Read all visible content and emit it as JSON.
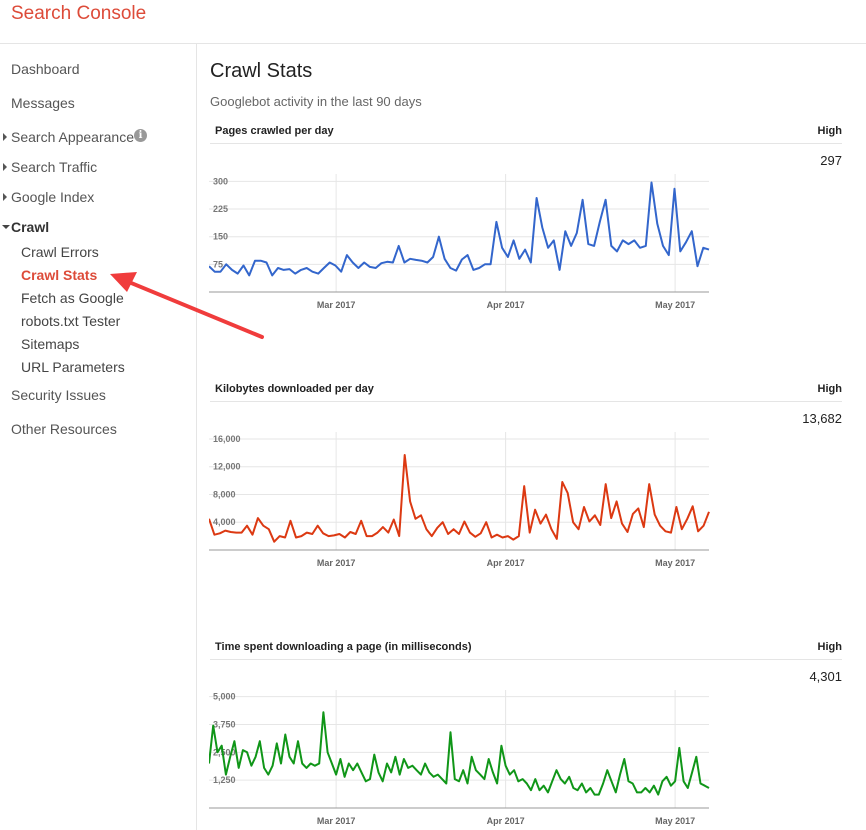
{
  "app": {
    "title": "Search Console"
  },
  "sidebar": {
    "dashboard": "Dashboard",
    "messages": "Messages",
    "search_appearance": "Search Appearance",
    "search_traffic": "Search Traffic",
    "google_index": "Google Index",
    "crawl": "Crawl",
    "crawl_children": [
      "Crawl Errors",
      "Crawl Stats",
      "Fetch as Google",
      "robots.txt Tester",
      "Sitemaps",
      "URL Parameters"
    ],
    "security_issues": "Security Issues",
    "other_resources": "Other Resources",
    "info_glyph": "i"
  },
  "main": {
    "title": "Crawl Stats",
    "subtitle": "Googlebot activity in the last 90 days",
    "high_label": "High"
  },
  "chart_data": [
    {
      "type": "line",
      "title": "Pages crawled per day",
      "high": "297",
      "color": "#3366cc",
      "ylim": [
        0,
        320
      ],
      "yticks": [
        300,
        225,
        150,
        75
      ],
      "ytick_labels": [
        "300",
        "225",
        "150",
        "75"
      ],
      "x_tick_labels": [
        "Mar 2017",
        "Apr 2017",
        "May 2017"
      ],
      "x_tick_positions": [
        30,
        70,
        110
      ],
      "values": [
        70,
        55,
        55,
        75,
        60,
        50,
        72,
        45,
        85,
        85,
        80,
        45,
        65,
        60,
        62,
        50,
        60,
        65,
        55,
        50,
        65,
        80,
        72,
        55,
        100,
        80,
        65,
        80,
        68,
        65,
        78,
        82,
        80,
        125,
        80,
        90,
        87,
        85,
        80,
        95,
        150,
        90,
        65,
        58,
        88,
        100,
        60,
        65,
        75,
        75,
        190,
        120,
        95,
        140,
        90,
        115,
        80,
        255,
        175,
        120,
        140,
        60,
        165,
        125,
        160,
        250,
        130,
        125,
        190,
        250,
        125,
        110,
        140,
        130,
        140,
        120,
        125,
        297,
        185,
        125,
        100,
        280,
        110,
        135,
        165,
        70,
        120,
        115
      ]
    },
    {
      "type": "line",
      "title": "Kilobytes downloaded per day",
      "high": "13,682",
      "color": "#dc3912",
      "ylim": [
        0,
        17000
      ],
      "yticks": [
        16000,
        12000,
        8000,
        4000
      ],
      "ytick_labels": [
        "16,000",
        "12,000",
        "8,000",
        "4,000"
      ],
      "x_tick_labels": [
        "Mar 2017",
        "Apr 2017",
        "May 2017"
      ],
      "x_tick_positions": [
        30,
        70,
        110
      ],
      "values": [
        4500,
        2200,
        2400,
        2800,
        2600,
        2500,
        2500,
        3500,
        2200,
        4600,
        3500,
        3000,
        1200,
        2000,
        1800,
        4200,
        1800,
        2000,
        2500,
        2300,
        3500,
        2400,
        2000,
        2100,
        2300,
        1800,
        2600,
        2300,
        4200,
        2000,
        2000,
        2500,
        3300,
        2500,
        4400,
        2000,
        13682,
        7000,
        4500,
        5000,
        3000,
        2000,
        3200,
        4000,
        2300,
        3000,
        2300,
        4100,
        2500,
        1900,
        2400,
        4000,
        1800,
        2200,
        1800,
        2000,
        1500,
        2000,
        9200,
        2500,
        5800,
        3800,
        5100,
        3000,
        1600,
        9800,
        8200,
        4000,
        3000,
        6200,
        4100,
        5000,
        3600,
        9500,
        4600,
        7000,
        3800,
        2600,
        5200,
        6000,
        3300,
        9500,
        5100,
        3500,
        2700,
        2500,
        6200,
        3000,
        4500,
        6300,
        2700,
        3500,
        5500
      ]
    },
    {
      "type": "line",
      "title": "Time spent downloading a page (in milliseconds)",
      "high": "4,301",
      "color": "#109618",
      "ylim": [
        0,
        5300
      ],
      "yticks": [
        5000,
        3750,
        2500,
        1250
      ],
      "ytick_labels": [
        "5,000",
        "3,750",
        "2,500",
        "1,250"
      ],
      "x_tick_labels": [
        "Mar 2017",
        "Apr 2017",
        "May 2017"
      ],
      "x_tick_positions": [
        30,
        70,
        110
      ],
      "values": [
        2000,
        3700,
        2500,
        2800,
        1500,
        2300,
        3000,
        1800,
        2600,
        2500,
        1900,
        2300,
        3000,
        1800,
        1500,
        1900,
        2900,
        2000,
        3300,
        2300,
        2000,
        3000,
        2000,
        1800,
        2000,
        1900,
        2000,
        4301,
        2500,
        2000,
        1500,
        2200,
        1400,
        2000,
        1700,
        2000,
        1600,
        1200,
        1300,
        2400,
        1600,
        1200,
        2000,
        1600,
        2300,
        1500,
        2200,
        1800,
        1900,
        1700,
        1500,
        2000,
        1600,
        1400,
        1500,
        1300,
        1100,
        3400,
        1300,
        1200,
        1700,
        1100,
        2300,
        1700,
        1500,
        1300,
        2200,
        1600,
        1100,
        2800,
        1900,
        1500,
        1700,
        1200,
        1300,
        1100,
        800,
        1300,
        800,
        1000,
        700,
        1200,
        1700,
        1300,
        1100,
        1400,
        900,
        800,
        1100,
        700,
        900,
        600,
        600,
        1100,
        1700,
        1200,
        700,
        1500,
        2200,
        1200,
        1100,
        700,
        700,
        900,
        700,
        1000,
        600,
        1200,
        1400,
        1000,
        1200,
        2700,
        1200,
        900,
        1600,
        2300,
        1100,
        1000,
        900
      ]
    }
  ]
}
